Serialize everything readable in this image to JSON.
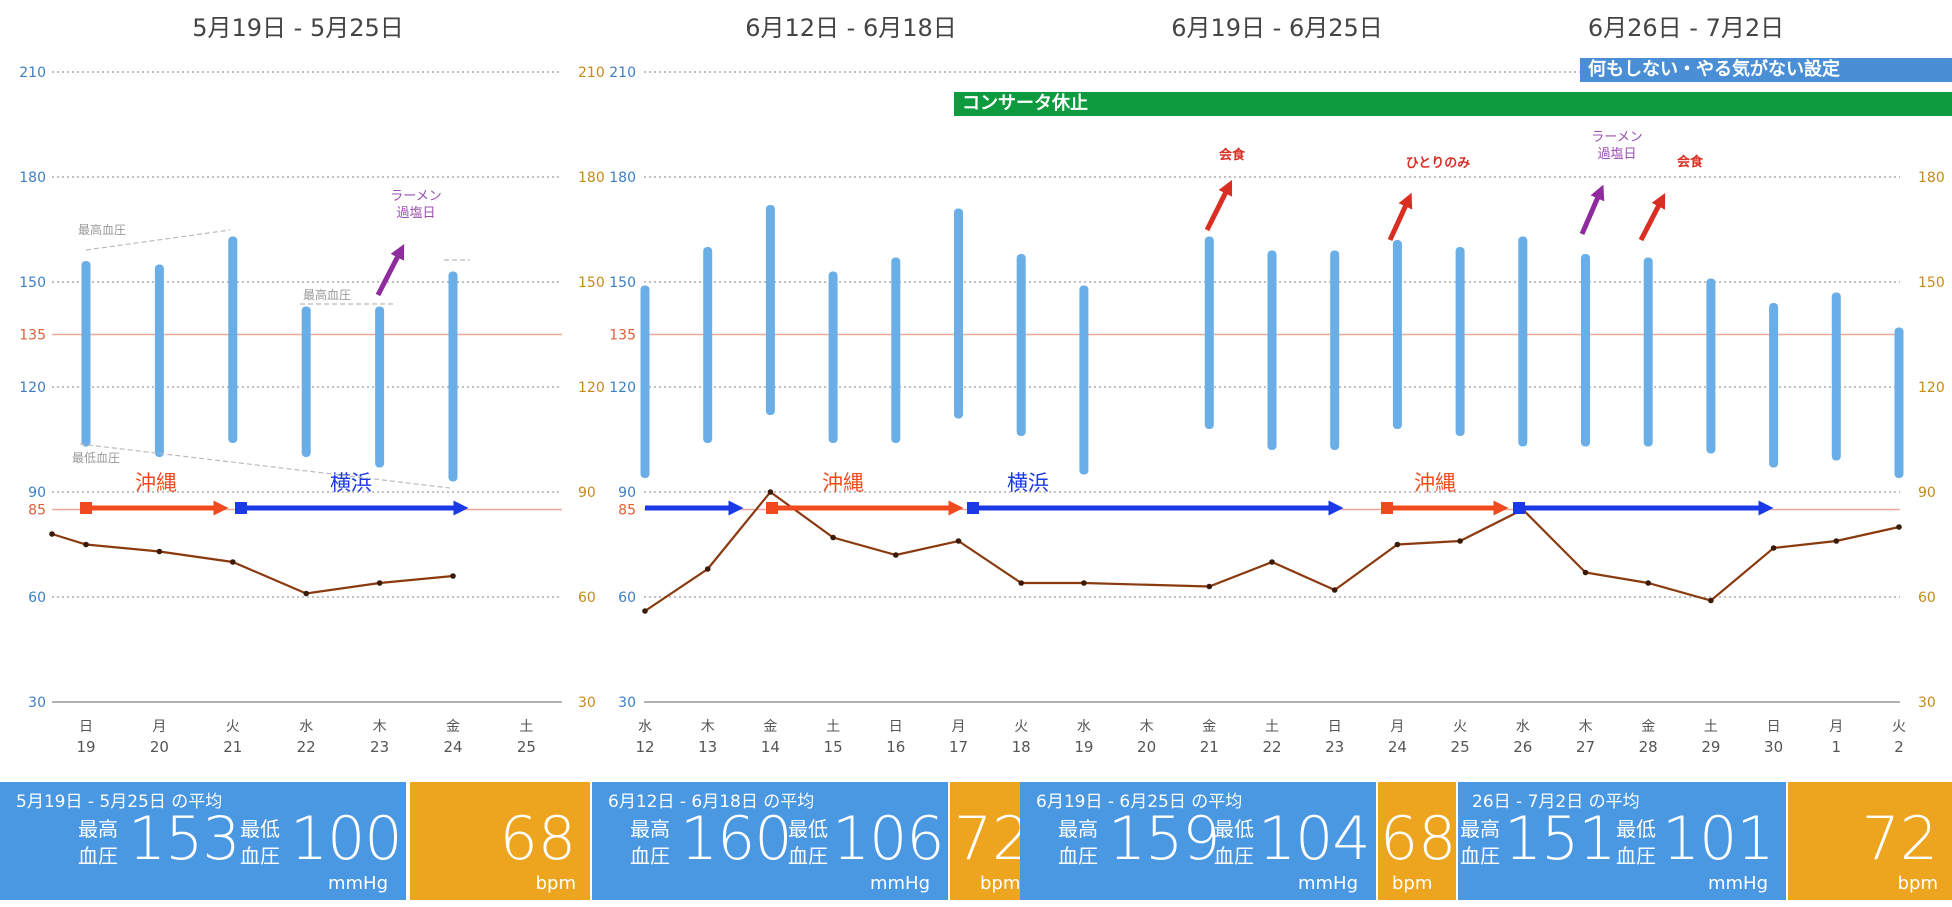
{
  "chart_data": {
    "type": "bar",
    "title": "",
    "ylim": [
      30,
      210
    ],
    "left_axis_ticks": [
      "210",
      "180",
      "150",
      "135",
      "120",
      "90",
      "85",
      "60",
      "30"
    ],
    "right_axis_ticks": [
      "210",
      "180",
      "150",
      "120",
      "90",
      "60",
      "30"
    ],
    "reference_lines": [
      135,
      85
    ],
    "weeks": [
      {
        "title": "5月19日 - 5月25日"
      },
      {
        "title": "6月12日 - 6月18日"
      },
      {
        "title": "6月19日 - 6月25日"
      },
      {
        "title": "6月26日 - 7月2日"
      }
    ],
    "panels": [
      {
        "days": [
          {
            "dow": "日",
            "date": "19",
            "high": 156,
            "low": 103,
            "pulse": 75
          },
          {
            "dow": "月",
            "date": "20",
            "high": 155,
            "low": 100,
            "pulse": 73
          },
          {
            "dow": "火",
            "date": "21",
            "high": 163,
            "low": 104,
            "pulse": 70
          },
          {
            "dow": "水",
            "date": "22",
            "high": 143,
            "low": 100,
            "pulse": 61
          },
          {
            "dow": "木",
            "date": "23",
            "high": 143,
            "low": 97,
            "pulse": 64
          },
          {
            "dow": "金",
            "date": "24",
            "high": 153,
            "low": 93,
            "pulse": 66
          },
          {
            "dow": "土",
            "date": "25",
            "high": null,
            "low": null,
            "pulse": null
          }
        ],
        "pulse_start": 78
      },
      {
        "days": [
          {
            "dow": "水",
            "date": "12",
            "high": 149,
            "low": 94,
            "pulse": 56
          },
          {
            "dow": "木",
            "date": "13",
            "high": 160,
            "low": 104,
            "pulse": 68
          },
          {
            "dow": "金",
            "date": "14",
            "high": 172,
            "low": 112,
            "pulse": 90
          },
          {
            "dow": "土",
            "date": "15",
            "high": 153,
            "low": 104,
            "pulse": 77
          },
          {
            "dow": "日",
            "date": "16",
            "high": 157,
            "low": 104,
            "pulse": 72
          },
          {
            "dow": "月",
            "date": "17",
            "high": 171,
            "low": 111,
            "pulse": 76
          },
          {
            "dow": "火",
            "date": "18",
            "high": 158,
            "low": 106,
            "pulse": 64
          },
          {
            "dow": "水",
            "date": "19",
            "high": 149,
            "low": 95,
            "pulse": 64
          },
          {
            "dow": "木",
            "date": "20",
            "high": null,
            "low": null,
            "pulse": null
          },
          {
            "dow": "金",
            "date": "21",
            "high": 163,
            "low": 108,
            "pulse": 63
          },
          {
            "dow": "土",
            "date": "22",
            "high": 159,
            "low": 102,
            "pulse": 70
          },
          {
            "dow": "日",
            "date": "23",
            "high": 159,
            "low": 102,
            "pulse": 62
          },
          {
            "dow": "月",
            "date": "24",
            "high": 162,
            "low": 108,
            "pulse": 75
          },
          {
            "dow": "火",
            "date": "25",
            "high": 160,
            "low": 106,
            "pulse": 76
          },
          {
            "dow": "水",
            "date": "26",
            "high": 163,
            "low": 103,
            "pulse": 85
          },
          {
            "dow": "木",
            "date": "27",
            "high": 158,
            "low": 103,
            "pulse": 67
          },
          {
            "dow": "金",
            "date": "28",
            "high": 157,
            "low": 103,
            "pulse": 64
          },
          {
            "dow": "土",
            "date": "29",
            "high": 151,
            "low": 101,
            "pulse": 59
          },
          {
            "dow": "日",
            "date": "30",
            "high": 144,
            "low": 97,
            "pulse": 74
          },
          {
            "dow": "月",
            "date": "1",
            "high": 147,
            "low": 99,
            "pulse": 76
          },
          {
            "dow": "火",
            "date": "2",
            "high": 137,
            "low": 94,
            "pulse": 80
          }
        ]
      }
    ]
  },
  "annotations": {
    "max_bp_label": "最高血圧",
    "min_bp_label": "最低血圧",
    "ramen_line1": "ラーメン",
    "ramen_line2": "過塩日",
    "dinner": "会食",
    "solo_drink": "ひとりのみ",
    "okinawa": "沖縄",
    "yokohama": "横浜"
  },
  "banners": {
    "concerta": "コンサータ休止",
    "do_nothing": "何もしない・やる気がない設定"
  },
  "averages": [
    {
      "label": "5月19日 - 5月25日 の平均",
      "high": "153",
      "low": "100",
      "pulse": "68"
    },
    {
      "label": "6月12日 - 6月18日 の平均",
      "high": "160",
      "low": "106",
      "pulse": "72"
    },
    {
      "label": "6月19日 - 6月25日 の平均",
      "high": "159",
      "low": "104",
      "pulse": "68"
    },
    {
      "label": "26日 - 7月2日 の平均",
      "high": "151",
      "low": "101",
      "pulse": "72"
    }
  ],
  "labels": {
    "high_line1": "最高",
    "high_line2": "血圧",
    "low_line1": "最低",
    "low_line2": "血圧",
    "unit_mmhg": "mmHg",
    "unit_bpm": "bpm"
  },
  "colors": {
    "bar": "#6aaee8",
    "pulse": "#8b3a0f",
    "left_axis": "#3d7fc4",
    "right_axis": "#c48a1c",
    "ref_line": "#f0a898",
    "okinawa": "#f04a1e",
    "yokohama": "#1a3ae8",
    "arrow_red": "#d92e22",
    "arrow_purple": "#8e2c9e",
    "annot_purple": "#9a4fb0",
    "concerta_bg": "#0e9a3e",
    "nothing_bg": "#4a8fd6"
  }
}
